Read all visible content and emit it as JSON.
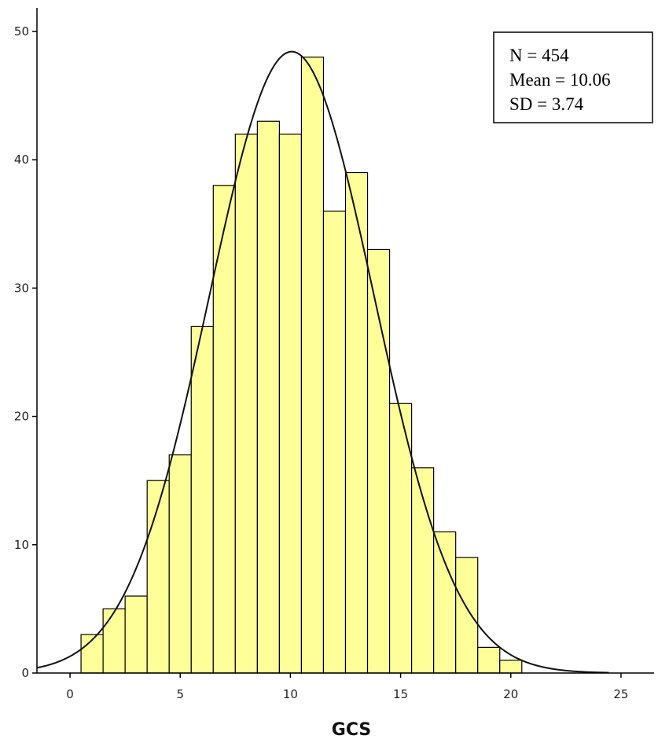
{
  "chart_data": {
    "type": "bar",
    "subtype": "histogram",
    "title": "",
    "xlabel": "GCS",
    "ylabel": "",
    "xlim": [
      -1.5,
      26.5
    ],
    "ylim": [
      0,
      50
    ],
    "x_ticks": [
      0,
      5,
      10,
      15,
      20,
      25
    ],
    "y_ticks": [
      0,
      10,
      20,
      30,
      40,
      50
    ],
    "x_tick_labels": [
      "0",
      "5",
      "10",
      "15",
      "20",
      "25"
    ],
    "y_tick_labels": [
      "0",
      "10",
      "20",
      "30",
      "40",
      "50"
    ],
    "bin_width": 1,
    "bins": [
      1,
      2,
      3,
      4,
      5,
      6,
      7,
      8,
      9,
      10,
      11,
      12,
      13,
      14,
      15,
      16,
      17,
      18,
      19,
      20
    ],
    "values": [
      3,
      5,
      6,
      15,
      17,
      27,
      38,
      42,
      43,
      42,
      48,
      36,
      39,
      33,
      21,
      16,
      11,
      9,
      2,
      1
    ],
    "bar_color": "#ffff99",
    "bar_stroke": "#000000",
    "normal_curve": {
      "n": 454,
      "mean": 10.06,
      "sd": 3.74
    },
    "stats_box": {
      "lines": [
        "N = 454",
        "Mean = 10.06",
        "SD = 3.74"
      ],
      "position": "top-right"
    },
    "grid": false,
    "legend": "none"
  }
}
